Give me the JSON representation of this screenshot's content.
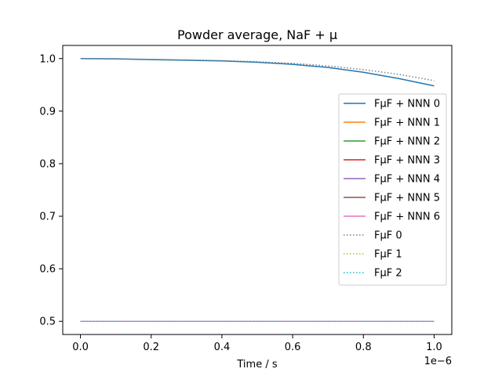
{
  "chart_data": {
    "type": "line",
    "title": "Powder average, NaF + μ",
    "xlabel": "Time / s",
    "ylabel": "",
    "x_offset_label": "1e−6",
    "xlim": [
      -0.05,
      1.05
    ],
    "ylim": [
      0.475,
      1.025
    ],
    "xticks": [
      0.0,
      0.2,
      0.4,
      0.6,
      0.8,
      1.0
    ],
    "xtick_labels": [
      "0.0",
      "0.2",
      "0.4",
      "0.6",
      "0.8",
      "1.0"
    ],
    "yticks": [
      0.5,
      0.6,
      0.7,
      0.8,
      0.9,
      1.0
    ],
    "ytick_labels": [
      "0.5",
      "0.6",
      "0.7",
      "0.8",
      "0.9",
      "1.0"
    ],
    "grid": false,
    "legend_position": "center-right",
    "x": [
      0.0,
      0.1,
      0.2,
      0.3,
      0.4,
      0.5,
      0.6,
      0.7,
      0.8,
      0.9,
      1.0
    ],
    "series": [
      {
        "name": "FμF + NNN 0",
        "color": "#1f77b4",
        "style": "solid",
        "values": [
          1.0,
          0.9995,
          0.998,
          0.9968,
          0.9955,
          0.993,
          0.989,
          0.983,
          0.974,
          0.962,
          0.948
        ]
      },
      {
        "name": "FμF + NNN 1",
        "color": "#ff7f0e",
        "style": "solid",
        "values": [
          0.5,
          0.5,
          0.5,
          0.5,
          0.5,
          0.5,
          0.5,
          0.5,
          0.5,
          0.5,
          0.5
        ]
      },
      {
        "name": "FμF + NNN 2",
        "color": "#2ca02c",
        "style": "solid",
        "values": [
          0.5,
          0.5,
          0.5,
          0.5,
          0.5,
          0.5,
          0.5,
          0.5,
          0.5,
          0.5,
          0.5
        ]
      },
      {
        "name": "FμF + NNN 3",
        "color": "#d62728",
        "style": "solid",
        "values": [
          0.5,
          0.5,
          0.5,
          0.5,
          0.5,
          0.5,
          0.5,
          0.5,
          0.5,
          0.5,
          0.5
        ]
      },
      {
        "name": "FμF + NNN 4",
        "color": "#9467bd",
        "style": "solid",
        "values": [
          0.5,
          0.5,
          0.5,
          0.5,
          0.5,
          0.5,
          0.5,
          0.5,
          0.5,
          0.5,
          0.5
        ]
      },
      {
        "name": "FμF + NNN 5",
        "color": "#8c564b",
        "style": "solid",
        "values": [
          0.5,
          0.5,
          0.5,
          0.5,
          0.5,
          0.5,
          0.5,
          0.5,
          0.5,
          0.5,
          0.5
        ]
      },
      {
        "name": "FμF + NNN 6",
        "color": "#e377c2",
        "style": "solid",
        "values": [
          0.5,
          0.5,
          0.5,
          0.5,
          0.5,
          0.5,
          0.5,
          0.5,
          0.5,
          0.5,
          0.5
        ]
      },
      {
        "name": "FμF 0",
        "color": "#7f7f7f",
        "style": "dotted",
        "values": [
          1.0,
          0.9996,
          0.9985,
          0.9975,
          0.9962,
          0.994,
          0.991,
          0.986,
          0.979,
          0.97,
          0.958
        ]
      },
      {
        "name": "FμF 1",
        "color": "#bcbd22",
        "style": "dotted",
        "values": [
          0.5,
          0.5,
          0.5,
          0.5,
          0.5,
          0.5,
          0.5,
          0.5,
          0.5,
          0.5,
          0.5
        ]
      },
      {
        "name": "FμF 2",
        "color": "#17becf",
        "style": "dotted",
        "values": [
          0.5,
          0.5,
          0.5,
          0.5,
          0.5,
          0.5,
          0.5,
          0.5,
          0.5,
          0.5,
          0.5
        ]
      }
    ]
  }
}
